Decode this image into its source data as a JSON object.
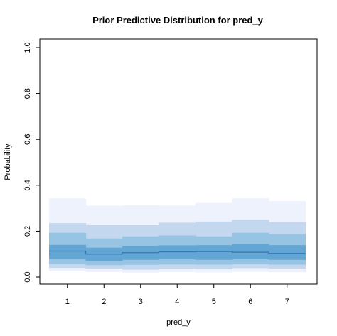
{
  "chart_data": {
    "type": "area",
    "title": "Prior Predictive Distribution for pred_y",
    "xlabel": "pred_y",
    "ylabel": "Probability",
    "categories": [
      "1",
      "2",
      "3",
      "4",
      "5",
      "6",
      "7"
    ],
    "yticks": [
      "0.0",
      "0.2",
      "0.4",
      "0.6",
      "0.8",
      "1.0"
    ],
    "ylim": [
      0,
      1
    ],
    "grid": false,
    "legend": "none",
    "median": [
      0.113,
      0.1,
      0.106,
      0.11,
      0.111,
      0.108,
      0.103
    ],
    "bands": [
      {
        "color": "#eef2fc",
        "lower": [
          0.025,
          0.022,
          0.019,
          0.022,
          0.02,
          0.023,
          0.021
        ],
        "upper": [
          0.343,
          0.311,
          0.313,
          0.312,
          0.323,
          0.343,
          0.331
        ]
      },
      {
        "color": "#c3d7ef",
        "lower": [
          0.04,
          0.037,
          0.032,
          0.036,
          0.035,
          0.039,
          0.037
        ],
        "upper": [
          0.235,
          0.226,
          0.226,
          0.237,
          0.242,
          0.25,
          0.24
        ]
      },
      {
        "color": "#98c4e3",
        "lower": [
          0.057,
          0.052,
          0.053,
          0.055,
          0.054,
          0.056,
          0.054
        ],
        "upper": [
          0.193,
          0.168,
          0.177,
          0.181,
          0.177,
          0.193,
          0.187
        ]
      },
      {
        "color": "#63a6d4",
        "lower": [
          0.079,
          0.069,
          0.075,
          0.077,
          0.075,
          0.077,
          0.075
        ],
        "upper": [
          0.14,
          0.128,
          0.135,
          0.138,
          0.139,
          0.143,
          0.139
        ]
      }
    ],
    "median_color": "#2f78b8"
  }
}
